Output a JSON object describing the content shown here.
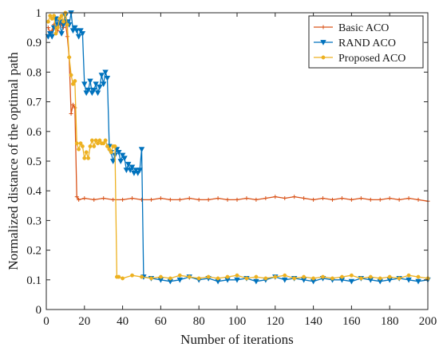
{
  "chart_data": {
    "type": "line",
    "title": "",
    "xlabel": "Number of iterations",
    "ylabel": "Normalized distance of the optimal path",
    "xlim": [
      0,
      200
    ],
    "ylim": [
      0,
      1
    ],
    "xticks": [
      0,
      20,
      40,
      60,
      80,
      100,
      120,
      140,
      160,
      180,
      200
    ],
    "yticks": [
      0,
      0.1,
      0.2,
      0.3,
      0.4,
      0.5,
      0.6,
      0.7,
      0.8,
      0.9,
      1
    ],
    "xtick_labels": [
      "0",
      "20",
      "40",
      "60",
      "80",
      "100",
      "120",
      "140",
      "160",
      "180",
      "200"
    ],
    "ytick_labels": [
      "0",
      "0.1",
      "0.2",
      "0.3",
      "0.4",
      "0.5",
      "0.6",
      "0.7",
      "0.8",
      "0.9",
      "1"
    ],
    "grid": false,
    "legend_position": "top-right",
    "series": [
      {
        "name": "Basic ACO",
        "color": "#D95319",
        "marker": "plus",
        "x": [
          1,
          2,
          3,
          4,
          5,
          6,
          7,
          8,
          9,
          10,
          11,
          12,
          13,
          14,
          15,
          16,
          17,
          20,
          25,
          30,
          35,
          40,
          45,
          50,
          55,
          60,
          65,
          70,
          75,
          80,
          85,
          90,
          95,
          100,
          105,
          110,
          115,
          120,
          125,
          130,
          135,
          140,
          145,
          150,
          155,
          160,
          165,
          170,
          175,
          180,
          185,
          190,
          195,
          200
        ],
        "y": [
          0.95,
          0.93,
          0.94,
          0.96,
          0.95,
          0.94,
          0.97,
          0.96,
          0.95,
          0.97,
          0.92,
          0.85,
          0.66,
          0.69,
          0.68,
          0.38,
          0.37,
          0.375,
          0.37,
          0.375,
          0.37,
          0.37,
          0.375,
          0.37,
          0.37,
          0.375,
          0.37,
          0.37,
          0.375,
          0.37,
          0.37,
          0.375,
          0.37,
          0.37,
          0.375,
          0.37,
          0.375,
          0.38,
          0.375,
          0.38,
          0.375,
          0.37,
          0.375,
          0.37,
          0.375,
          0.37,
          0.375,
          0.37,
          0.37,
          0.375,
          0.37,
          0.375,
          0.37,
          0.365
        ]
      },
      {
        "name": "RAND ACO",
        "color": "#0072BD",
        "marker": "triangle-down",
        "x": [
          1,
          2,
          3,
          4,
          5,
          6,
          7,
          8,
          9,
          10,
          11,
          12,
          13,
          14,
          15,
          16,
          17,
          18,
          19,
          20,
          21,
          22,
          23,
          24,
          25,
          26,
          27,
          28,
          29,
          30,
          31,
          32,
          33,
          34,
          35,
          36,
          37,
          38,
          39,
          40,
          41,
          42,
          43,
          44,
          45,
          46,
          47,
          48,
          49,
          50,
          51,
          55,
          60,
          65,
          70,
          75,
          80,
          85,
          90,
          95,
          100,
          105,
          110,
          115,
          120,
          125,
          130,
          135,
          140,
          145,
          150,
          155,
          160,
          165,
          170,
          175,
          180,
          185,
          190,
          195,
          200
        ],
        "y": [
          0.92,
          0.93,
          0.92,
          0.95,
          0.98,
          0.96,
          0.97,
          0.93,
          0.96,
          0.99,
          0.97,
          0.96,
          1.0,
          0.94,
          0.95,
          0.94,
          0.92,
          0.94,
          0.93,
          0.76,
          0.73,
          0.74,
          0.77,
          0.73,
          0.74,
          0.76,
          0.73,
          0.75,
          0.79,
          0.76,
          0.8,
          0.78,
          0.55,
          0.53,
          0.5,
          0.52,
          0.54,
          0.53,
          0.5,
          0.52,
          0.51,
          0.47,
          0.49,
          0.47,
          0.48,
          0.46,
          0.47,
          0.46,
          0.47,
          0.54,
          0.11,
          0.105,
          0.1,
          0.095,
          0.1,
          0.11,
          0.1,
          0.105,
          0.095,
          0.1,
          0.1,
          0.105,
          0.095,
          0.1,
          0.11,
          0.1,
          0.105,
          0.1,
          0.095,
          0.105,
          0.1,
          0.1,
          0.095,
          0.105,
          0.1,
          0.095,
          0.1,
          0.105,
          0.1,
          0.095,
          0.1
        ]
      },
      {
        "name": "Proposed ACO",
        "color": "#EDB120",
        "marker": "dot",
        "x": [
          1,
          2,
          3,
          4,
          5,
          6,
          7,
          8,
          9,
          10,
          11,
          12,
          13,
          14,
          15,
          16,
          17,
          18,
          19,
          20,
          21,
          22,
          23,
          24,
          25,
          26,
          27,
          28,
          29,
          30,
          31,
          32,
          33,
          34,
          35,
          36,
          37,
          38,
          40,
          45,
          50,
          55,
          60,
          65,
          70,
          75,
          80,
          85,
          90,
          95,
          100,
          105,
          110,
          115,
          120,
          125,
          130,
          135,
          140,
          145,
          150,
          155,
          160,
          165,
          170,
          175,
          180,
          185,
          190,
          195,
          200
        ],
        "y": [
          0.97,
          0.99,
          0.98,
          0.99,
          0.93,
          0.95,
          0.98,
          0.99,
          0.97,
          1.0,
          0.96,
          0.85,
          0.79,
          0.76,
          0.77,
          0.56,
          0.54,
          0.56,
          0.55,
          0.51,
          0.53,
          0.51,
          0.55,
          0.57,
          0.55,
          0.57,
          0.56,
          0.57,
          0.56,
          0.56,
          0.57,
          0.55,
          0.54,
          0.53,
          0.55,
          0.55,
          0.11,
          0.11,
          0.105,
          0.115,
          0.11,
          0.105,
          0.11,
          0.105,
          0.115,
          0.11,
          0.105,
          0.11,
          0.105,
          0.11,
          0.115,
          0.105,
          0.11,
          0.105,
          0.11,
          0.115,
          0.105,
          0.11,
          0.105,
          0.11,
          0.105,
          0.11,
          0.115,
          0.105,
          0.11,
          0.105,
          0.11,
          0.105,
          0.115,
          0.11,
          0.105
        ]
      }
    ]
  }
}
